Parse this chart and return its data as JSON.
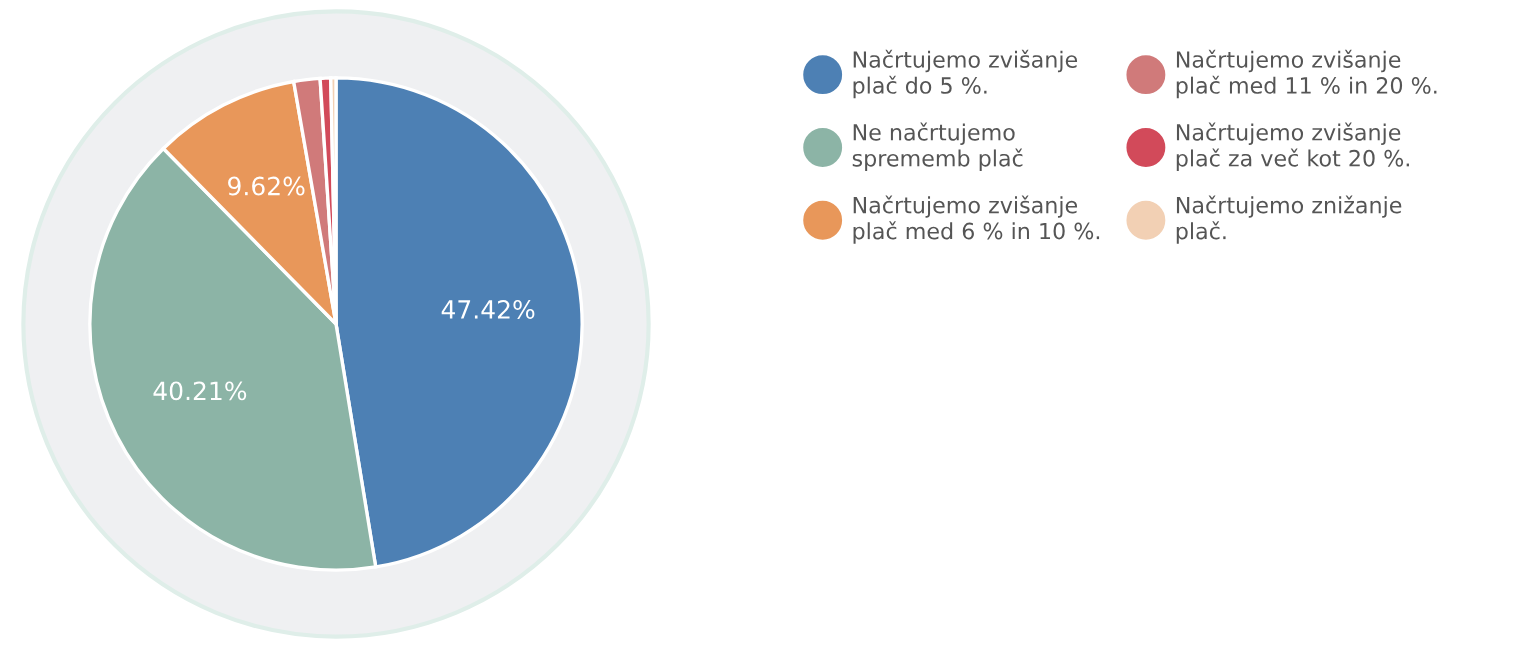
{
  "chart_data": {
    "type": "pie",
    "categories": [
      "Načrtujemo zvišanje plač do 5 %.",
      "Ne načrtujemo sprememb plač",
      "Načrtujemo zvišanje plač med 6 % in 10 %.",
      "Načrtujemo zvišanje plač med 11 % in 20 %.",
      "Načrtujemo zvišanje plač za več kot 20 %.",
      "Načrtujemo znižanje plač."
    ],
    "values": [
      47.42,
      40.21,
      9.62,
      1.72,
      0.69,
      0.34
    ],
    "colors": [
      "#4d80b4",
      "#8cb4a6",
      "#e8975a",
      "#d07a7a",
      "#d24a5a",
      "#f2d0b4"
    ],
    "value_labels": [
      "47.42%",
      "40.21%",
      "9.62%",
      null,
      null,
      null
    ],
    "legend": "right"
  }
}
